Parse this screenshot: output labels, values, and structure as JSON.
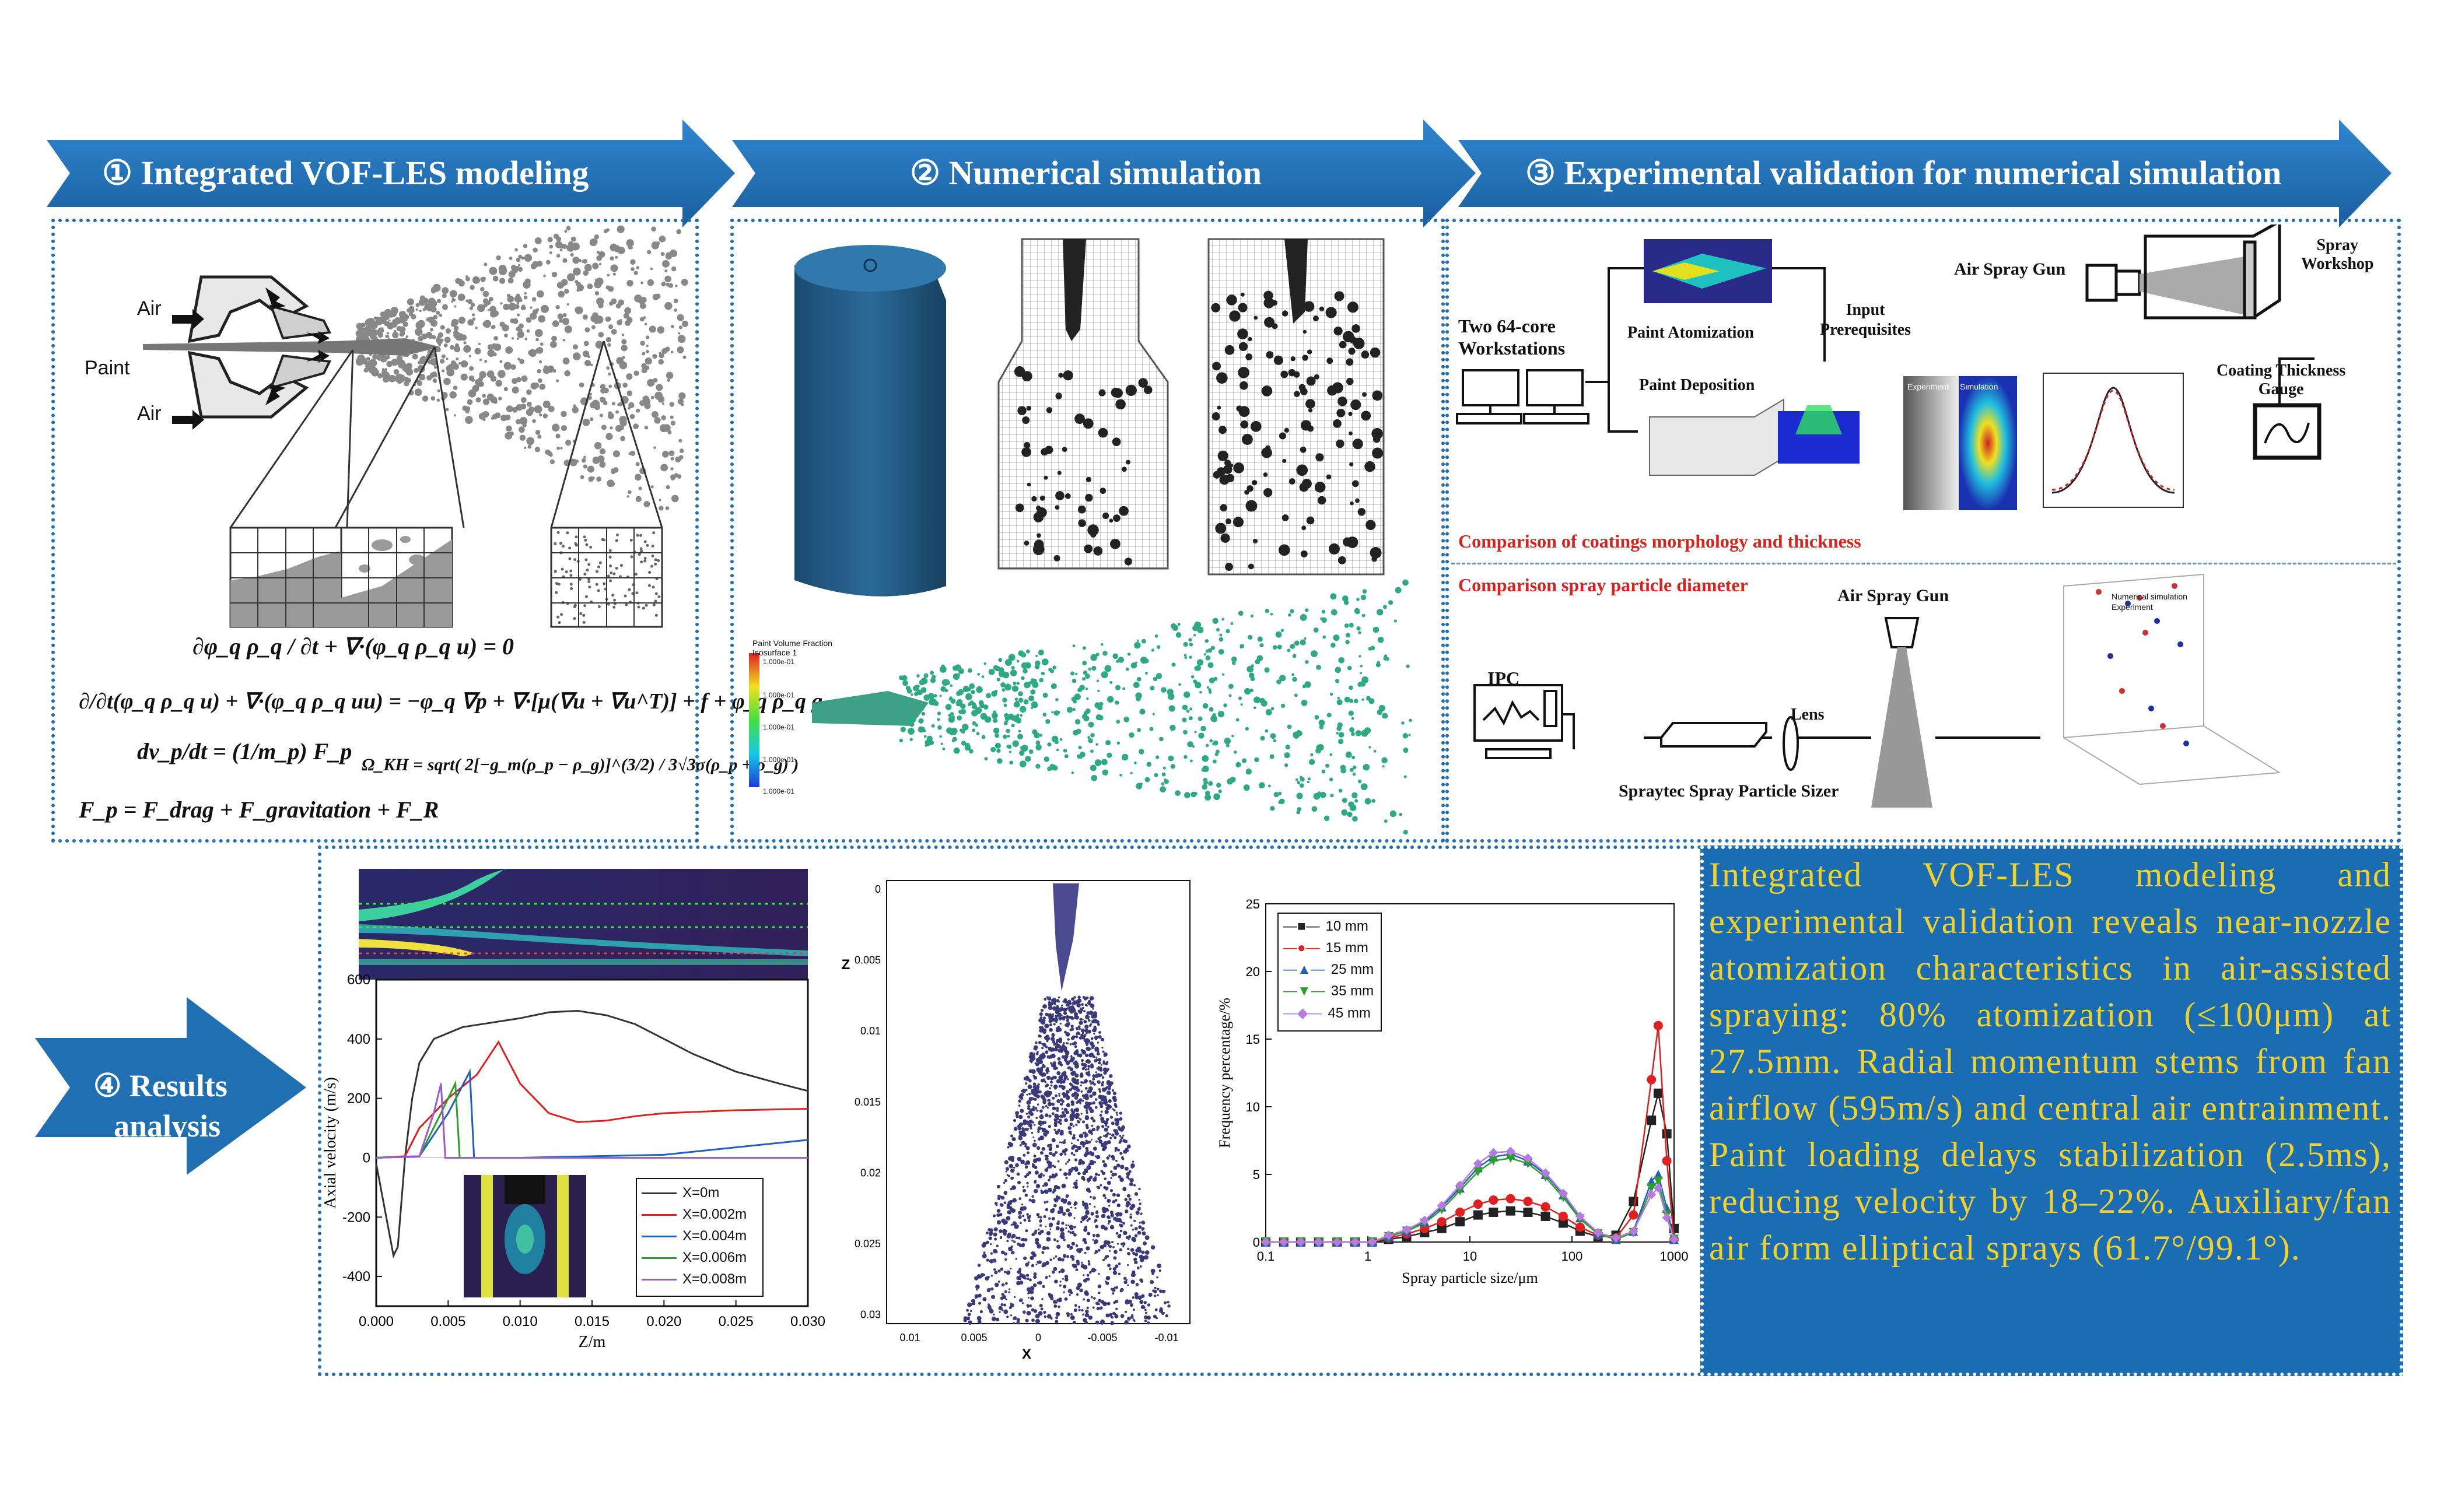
{
  "headers": {
    "step1": "① Integrated VOF-LES modeling",
    "step2": "② Numerical simulation",
    "step3": "③ Experimental validation for numerical simulation",
    "step4_line1": "④ Results",
    "step4_line2": "analysis"
  },
  "colors": {
    "arrow_blue": "#1f6fb2",
    "summary_bg": "#1a6db3",
    "summary_text": "#f2d22a",
    "red_label": "#d6231e"
  },
  "panel1": {
    "labels": {
      "air_top": "Air",
      "paint": "Paint",
      "air_bottom": "Air"
    },
    "equations": {
      "continuity": "∂φ_q ρ_q / ∂t + ∇·(φ_q ρ_q u) = 0",
      "momentum": "∂/∂t(φ_q ρ_q u) + ∇·(φ_q ρ_q uu) = −φ_q ∇p + ∇·[μ(∇u + ∇u^T)] + f + φ_q ρ_q g",
      "particle": "dv_p/dt = (1/m_p) F_p",
      "force": "F_p = F_drag + F_gravitation + F_R",
      "omega": "Ω_KH = sqrt( 2[−g_m(ρ_p − ρ_g)]^(3/2) / 3√3σ(ρ_p + ρ_g) )"
    }
  },
  "panel2": {
    "legend_title": "Paint Volume Fraction\nIsosurface 1",
    "legend_ticks": [
      "1.000e-01",
      "1.000e-01",
      "1.000e-01",
      "1.000e-01",
      "1.000e-01"
    ]
  },
  "panel3": {
    "workstations": "Two 64-core\nWorkstations",
    "paint_atomization": "Paint Atomization",
    "input_prerequisites": "Input\nPrerequisites",
    "paint_deposition": "Paint Deposition",
    "air_spray_gun": "Air Spray Gun",
    "spray_workshop": "Spray\nWorkshop",
    "thickness_gauge": "Coating Thickness\nGauge",
    "comparison_coatings": "Comparison of coatings morphology and thickness",
    "comparison_particle": "Comparison spray particle diameter",
    "ipc": "IPC",
    "lens": "Lens",
    "air_spray_gun_2": "Air Spray Gun",
    "spraytec": "Spraytec Spray Particle Sizer",
    "experiment": "Experiment",
    "simulation": "Simulation",
    "scatter3d_legend": [
      "Numerical simulation",
      "Experiment"
    ]
  },
  "chart_data": [
    {
      "type": "line",
      "xlabel": "Z/m",
      "ylabel": "Axial velocity (m/s)",
      "xlim": [
        0.0,
        0.03
      ],
      "ylim": [
        -500,
        600
      ],
      "xticks": [
        "0.000",
        "0.005",
        "0.010",
        "0.015",
        "0.020",
        "0.025",
        "0.030"
      ],
      "yticks": [
        "600",
        "400",
        "200",
        "0",
        "-200",
        "-400"
      ],
      "series": [
        {
          "name": "X=0m",
          "color": "#333333",
          "x": [
            0.0,
            0.0012,
            0.0015,
            0.002,
            0.0025,
            0.003,
            0.004,
            0.006,
            0.008,
            0.01,
            0.012,
            0.014,
            0.016,
            0.018,
            0.02,
            0.022,
            0.025,
            0.028,
            0.03
          ],
          "y": [
            -20,
            -330,
            -300,
            0,
            200,
            320,
            400,
            440,
            455,
            470,
            490,
            495,
            480,
            450,
            400,
            350,
            290,
            250,
            225
          ]
        },
        {
          "name": "X=0.002m",
          "color": "#e02020",
          "x": [
            0.0,
            0.002,
            0.003,
            0.005,
            0.007,
            0.0085,
            0.01,
            0.012,
            0.014,
            0.016,
            0.018,
            0.02,
            0.025,
            0.03
          ],
          "y": [
            0,
            5,
            100,
            200,
            280,
            390,
            250,
            150,
            120,
            125,
            140,
            150,
            160,
            165
          ]
        },
        {
          "name": "X=0.004m",
          "color": "#1f5fc0",
          "x": [
            0.0,
            0.003,
            0.005,
            0.0065,
            0.0068,
            0.01,
            0.02,
            0.03
          ],
          "y": [
            0,
            5,
            150,
            290,
            0,
            0,
            10,
            60
          ]
        },
        {
          "name": "X=0.006m",
          "color": "#2aa02a",
          "x": [
            0.0,
            0.003,
            0.0045,
            0.0055,
            0.0058,
            0.01,
            0.03
          ],
          "y": [
            0,
            5,
            150,
            250,
            0,
            0,
            0
          ]
        },
        {
          "name": "X=0.008m",
          "color": "#9b59d0",
          "x": [
            0.0,
            0.003,
            0.004,
            0.0045,
            0.0048,
            0.01,
            0.03
          ],
          "y": [
            0,
            5,
            150,
            250,
            0,
            0,
            0
          ]
        }
      ]
    },
    {
      "type": "scatter",
      "xlabel": "X",
      "ylabel": "Z",
      "xticks": [
        "0.01",
        "0.005",
        "0",
        "-0.005",
        "-0.01"
      ],
      "yticks": [
        "0",
        "0.005",
        "0.01",
        "0.015",
        "0.02",
        "0.025",
        "0.03"
      ]
    },
    {
      "type": "line",
      "xlabel": "Spray particle size/μm",
      "ylabel": "Frequency percentage/%",
      "xscale": "log",
      "xlim": [
        0.1,
        1000
      ],
      "ylim": [
        0,
        25
      ],
      "xticks": [
        "0.1",
        "1",
        "10",
        "100",
        "1000"
      ],
      "yticks": [
        "0",
        "5",
        "10",
        "15",
        "20",
        "25"
      ],
      "x": [
        0.1,
        0.15,
        0.22,
        0.33,
        0.5,
        0.75,
        1.1,
        1.6,
        2.4,
        3.6,
        5.3,
        8,
        12,
        17,
        25,
        37,
        55,
        82,
        120,
        180,
        270,
        400,
        600,
        700,
        850,
        1000
      ],
      "series": [
        {
          "name": "10 mm",
          "color": "#222222",
          "marker": "square",
          "values": [
            0,
            0,
            0,
            0,
            0,
            0,
            0,
            0.2,
            0.4,
            0.7,
            1.0,
            1.5,
            2.0,
            2.2,
            2.3,
            2.2,
            1.9,
            1.4,
            0.8,
            0.4,
            0.5,
            3,
            9,
            11,
            8,
            1
          ]
        },
        {
          "name": "15 mm",
          "color": "#e02020",
          "marker": "circle",
          "values": [
            0,
            0,
            0,
            0,
            0,
            0,
            0,
            0.3,
            0.6,
            1.0,
            1.5,
            2.2,
            2.8,
            3.1,
            3.2,
            3.0,
            2.6,
            1.9,
            1.1,
            0.5,
            0.3,
            2,
            12,
            16,
            6,
            0.2
          ]
        },
        {
          "name": "25 mm",
          "color": "#1f5fc0",
          "marker": "triangle-up",
          "values": [
            0,
            0,
            0,
            0,
            0,
            0,
            0,
            0.4,
            0.8,
            1.5,
            2.6,
            4.0,
            5.5,
            6.3,
            6.5,
            6.0,
            5.0,
            3.5,
            1.8,
            0.6,
            0.2,
            0.8,
            4.5,
            5.0,
            2.5,
            0.2
          ]
        },
        {
          "name": "35 mm",
          "color": "#2aa02a",
          "marker": "triangle-down",
          "values": [
            0,
            0,
            0,
            0,
            0,
            0,
            0,
            0.4,
            0.8,
            1.4,
            2.4,
            3.8,
            5.2,
            6.0,
            6.2,
            5.8,
            4.8,
            3.3,
            1.7,
            0.6,
            0.2,
            0.7,
            4.0,
            4.5,
            2.0,
            0.2
          ]
        },
        {
          "name": "45 mm",
          "color": "#b57be0",
          "marker": "diamond",
          "values": [
            0,
            0,
            0,
            0,
            0,
            0,
            0,
            0.5,
            0.9,
            1.6,
            2.7,
            4.2,
            5.8,
            6.6,
            6.7,
            6.2,
            5.1,
            3.6,
            1.9,
            0.7,
            0.3,
            0.8,
            3.5,
            4.0,
            1.8,
            0.2
          ]
        }
      ]
    }
  ],
  "summary": "Integrated VOF-LES modeling and experimental validation reveals near-nozzle atomization characteristics in air-assisted spraying: 80% atomization (≤100μm) at 27.5mm. Radial momentum stems from fan airflow (595m/s) and central air entrainment. Paint loading delays stabilization (2.5ms), reducing velocity by 18–22%. Auxiliary/fan air form elliptical sprays (61.7°/99.1°)."
}
